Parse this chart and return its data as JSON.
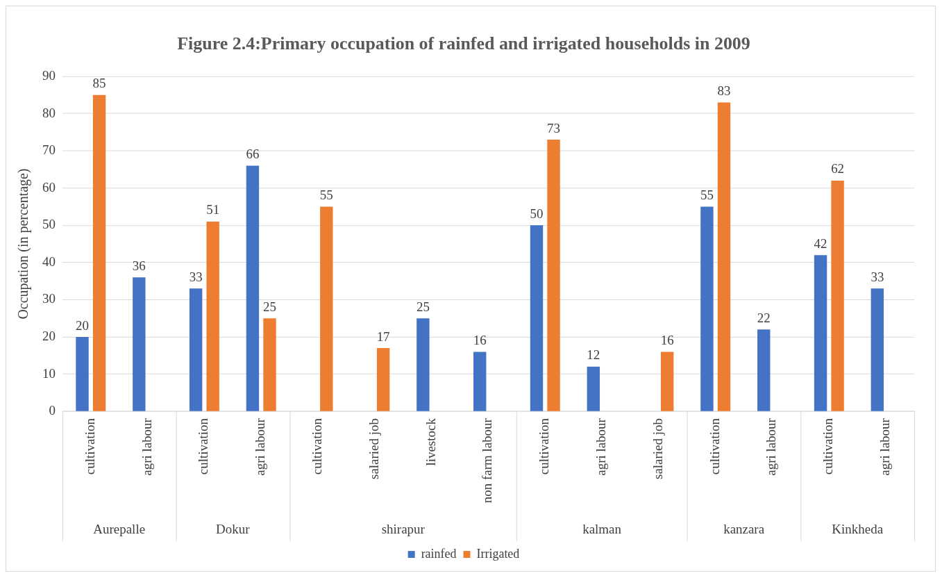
{
  "chart_data": {
    "type": "bar",
    "title": "Figure 2.4:Primary occupation of rainfed and irrigated households in 2009",
    "ylabel": "Occupation (in percentage)",
    "categories": [
      "cultivation",
      "agri labour",
      "cultivation",
      "agri labour",
      "cultivation",
      "salaried job",
      "livestock",
      "non farm labour",
      "cultivation",
      "agri labour",
      "salaried job",
      "cultivation",
      "agri labour",
      "cultivation",
      "agri labour"
    ],
    "series": [
      {
        "name": "rainfed",
        "color": "#4472c4",
        "values": [
          20,
          36,
          33,
          66,
          null,
          null,
          25,
          16,
          50,
          12,
          null,
          55,
          22,
          42,
          33
        ]
      },
      {
        "name": "Irrigated",
        "color": "#ed7d31",
        "values": [
          85,
          null,
          51,
          25,
          55,
          17,
          null,
          null,
          73,
          null,
          16,
          83,
          null,
          62,
          null
        ]
      }
    ],
    "annotations": [
      "Aurepalle",
      "Dokur",
      "shirapur",
      "kalman",
      "kanzara",
      "Kinkheda"
    ],
    "ylim": [
      0,
      90
    ],
    "yticks": [
      0,
      10,
      20,
      30,
      40,
      50,
      60,
      70,
      80,
      90
    ],
    "grid": "y",
    "legend": "bottom",
    "data_labels": true
  }
}
